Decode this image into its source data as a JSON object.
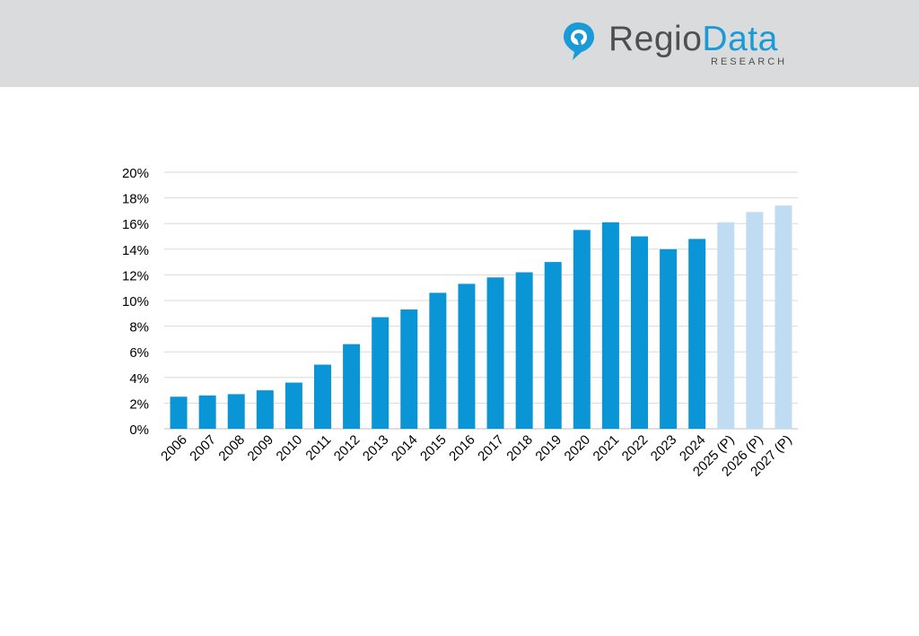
{
  "brand": {
    "name_part1": "Regio",
    "name_part2": "Data",
    "tagline": "RESEARCH",
    "colors": {
      "header_bg": "#d9dbdc",
      "text_gray": "#4d4f53",
      "accent_blue": "#1a9bd7"
    },
    "icon": "map-pin-icon"
  },
  "chart_data": {
    "type": "bar",
    "categories": [
      "2006",
      "2007",
      "2008",
      "2009",
      "2010",
      "2011",
      "2012",
      "2013",
      "2014",
      "2015",
      "2016",
      "2017",
      "2018",
      "2019",
      "2020",
      "2021",
      "2022",
      "2023",
      "2024",
      "2025 (P)",
      "2026 (P)",
      "2027 (P)"
    ],
    "values": [
      2.5,
      2.6,
      2.7,
      3.0,
      3.6,
      5.0,
      6.6,
      8.7,
      9.3,
      10.6,
      11.3,
      11.8,
      12.2,
      13.0,
      15.5,
      16.1,
      15.0,
      14.0,
      14.8,
      16.1,
      16.9,
      17.4
    ],
    "projected": [
      false,
      false,
      false,
      false,
      false,
      false,
      false,
      false,
      false,
      false,
      false,
      false,
      false,
      false,
      false,
      false,
      false,
      false,
      false,
      true,
      true,
      true
    ],
    "colors": {
      "actual": "#0a96d6",
      "projected": "#bfdcf3",
      "grid": "#d9d9d9"
    },
    "yticks": [
      "0%",
      "2%",
      "4%",
      "6%",
      "8%",
      "10%",
      "12%",
      "14%",
      "16%",
      "18%",
      "20%"
    ],
    "ylim": [
      0,
      20
    ],
    "grid": true,
    "legend": "none",
    "title": "",
    "xlabel": "",
    "ylabel": ""
  }
}
